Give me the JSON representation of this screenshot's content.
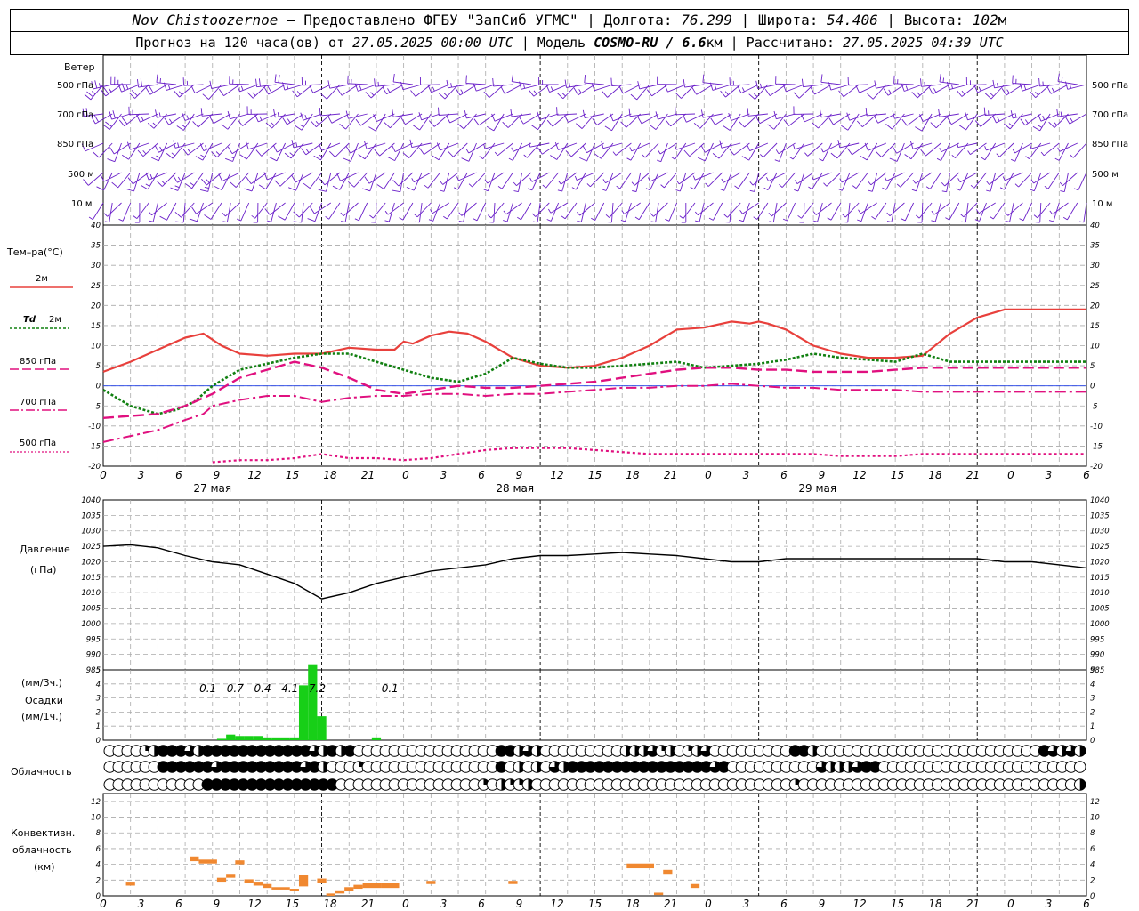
{
  "header": {
    "station": "Nov_Chistoozernoe",
    "provider": "– Предоставлено ФГБУ \"ЗапСиб УГМС\"",
    "lon_label": "Долгота:",
    "lon": "76.299",
    "lat_label": "Широта:",
    "lat": "54.406",
    "alt_label": "Высота:",
    "alt": "102",
    "alt_unit": "м",
    "forecast_prefix": "Прогноз на 120 часа(ов) от",
    "forecast_start": "27.05.2025 00:00 UTC",
    "model_label": "| Модель",
    "model": "COSMO-RU / 6.6",
    "model_unit": "км",
    "calc_label": "| Рассчитано:",
    "calc_time": "27.05.2025 04:39 UTC"
  },
  "labels": {
    "wind": "Ветер",
    "wind_levels": [
      "500 гПа",
      "700 гПа",
      "850 гПа",
      "500 м",
      "10  м"
    ],
    "temp_title": "Тем–ра(°С)",
    "t2m": "2м",
    "td_a": "Td",
    "td_b": "2м",
    "l850": "850 гПа",
    "l700": "700 гПа",
    "l500": "500 гПа",
    "pres_a": "Давление",
    "pres_b": "(гПа)",
    "prec_a": "(мм/3ч.)",
    "prec_b": "Осадки",
    "prec_c": "(мм/1ч.)",
    "cloud": "Облачность",
    "conv_a": "Конвективн.",
    "conv_b": "облачность",
    "conv_c": "(км)"
  },
  "colors": {
    "t2m": "#e8403c",
    "td": "#118011",
    "t850": "#e0107f",
    "t700": "#e0107f",
    "t500": "#e0107f",
    "wind": "#6a1fc9",
    "precip": "#17cf17",
    "conv": "#f08830",
    "zero_line": "#1f3fe8"
  },
  "chart_data": [
    {
      "type": "line",
      "x_hours_tick_labels": [
        "0",
        "3",
        "6",
        "9",
        "12",
        "15",
        "18",
        "21",
        "0",
        "3",
        "6",
        "9",
        "12",
        "15",
        "18",
        "21",
        "0",
        "3",
        "6",
        "9",
        "12",
        "15",
        "18",
        "21",
        "0",
        "3",
        "6"
      ],
      "day_labels": [
        "27 мая",
        "28 мая",
        "29 мая"
      ],
      "ylim": [
        -20,
        40
      ],
      "yticks": [
        -20,
        -15,
        -10,
        -5,
        0,
        5,
        10,
        15,
        20,
        25,
        30,
        35,
        40
      ],
      "series": [
        {
          "name": "2м",
          "key": "t2m",
          "x": [
            0,
            3,
            6,
            9,
            11,
            13,
            15,
            18,
            21,
            24,
            27,
            30,
            32,
            33,
            34,
            36,
            38,
            40,
            42,
            45,
            48,
            51,
            54,
            57,
            60,
            63,
            66,
            69,
            71,
            72,
            73,
            75,
            78,
            81,
            84,
            87,
            90,
            93,
            96,
            99,
            102,
            105,
            108
          ],
          "values": [
            3.5,
            6,
            9,
            12,
            13,
            10,
            8,
            7.5,
            8,
            8,
            9.5,
            9,
            9,
            11,
            10.5,
            12.5,
            13.5,
            13,
            11,
            7,
            5,
            4.5,
            5,
            7,
            10,
            14,
            14.5,
            16,
            15.5,
            16,
            15.5,
            14,
            10,
            8,
            7,
            7,
            7.5,
            13,
            17,
            19,
            19,
            19,
            19
          ]
        },
        {
          "name": "Td 2м",
          "key": "td",
          "x": [
            0,
            3,
            6,
            8,
            10,
            12,
            15,
            18,
            21,
            24,
            27,
            30,
            33,
            36,
            39,
            42,
            45,
            48,
            51,
            54,
            57,
            60,
            63,
            66,
            69,
            72,
            75,
            78,
            81,
            84,
            87,
            90,
            93,
            96,
            99,
            102,
            105,
            108
          ],
          "values": [
            -1,
            -5,
            -7,
            -6,
            -4,
            0,
            4,
            5.5,
            7,
            8,
            8,
            6,
            4,
            2,
            1,
            3,
            7,
            5.5,
            4.5,
            4.5,
            5,
            5.5,
            6,
            4.5,
            5,
            5.5,
            6.5,
            8,
            7,
            6.5,
            6,
            8,
            6,
            6,
            6,
            6,
            6,
            6
          ]
        },
        {
          "name": "850 гПа",
          "key": "t850",
          "x": [
            0,
            3,
            6,
            9,
            12,
            15,
            18,
            21,
            24,
            27,
            30,
            33,
            36,
            39,
            42,
            45,
            48,
            51,
            54,
            57,
            60,
            63,
            66,
            69,
            72,
            75,
            78,
            81,
            84,
            87,
            90,
            93,
            96,
            99,
            102,
            105,
            108
          ],
          "values": [
            -8,
            -7.5,
            -7,
            -5,
            -2,
            2,
            4,
            6,
            4.5,
            2,
            -1,
            -2,
            -1,
            0,
            -0.5,
            -0.5,
            0,
            0.5,
            1,
            2,
            3,
            4,
            4.5,
            4.5,
            4,
            4,
            3.5,
            3.5,
            3.5,
            4,
            4.5,
            4.5,
            4.5,
            4.5,
            4.5,
            4.5,
            4.5
          ]
        },
        {
          "name": "700 гПа",
          "key": "t700",
          "x": [
            0,
            3,
            6,
            9,
            11,
            12,
            15,
            18,
            21,
            24,
            27,
            30,
            33,
            36,
            39,
            42,
            45,
            48,
            51,
            54,
            57,
            60,
            63,
            66,
            69,
            72,
            75,
            78,
            81,
            84,
            87,
            90,
            93,
            96,
            99,
            102,
            105,
            108
          ],
          "values": [
            -14,
            -12.5,
            -11,
            -8.5,
            -7,
            -5,
            -3.5,
            -2.5,
            -2.5,
            -4,
            -3,
            -2.5,
            -2.5,
            -2,
            -2,
            -2.5,
            -2,
            -2,
            -1.5,
            -1,
            -0.5,
            -0.5,
            0,
            0,
            0.5,
            0,
            -0.5,
            -0.5,
            -1,
            -1,
            -1,
            -1.5,
            -1.5,
            -1.5,
            -1.5,
            -1.5,
            -1.5,
            -1.5
          ]
        },
        {
          "name": "500 гПа",
          "key": "t500",
          "x": [
            12,
            15,
            18,
            21,
            24,
            27,
            30,
            33,
            36,
            39,
            42,
            45,
            48,
            51,
            54,
            57,
            60,
            63,
            66,
            69,
            72,
            75,
            78,
            81,
            84,
            87,
            90,
            93,
            96,
            99,
            102,
            105,
            108
          ],
          "values": [
            -19,
            -18.5,
            -18.5,
            -18,
            -17,
            -18,
            -18,
            -18.5,
            -18,
            -17,
            -16,
            -15.5,
            -15.5,
            -15.5,
            -16,
            -16.5,
            -17,
            -17,
            -17,
            -17,
            -17,
            -17,
            -17,
            -17.5,
            -17.5,
            -17.5,
            -17,
            -17,
            -17,
            -17,
            -17,
            -17,
            -17
          ]
        }
      ]
    },
    {
      "type": "line",
      "ylabel": "Давление (гПа)",
      "ylim": [
        985,
        1040
      ],
      "yticks": [
        985,
        990,
        995,
        1000,
        1005,
        1010,
        1015,
        1020,
        1025,
        1030,
        1035,
        1040
      ],
      "series": [
        {
          "name": "Давление",
          "x": [
            0,
            3,
            6,
            9,
            12,
            15,
            18,
            21,
            24,
            27,
            30,
            33,
            36,
            39,
            42,
            45,
            48,
            51,
            54,
            57,
            60,
            63,
            66,
            69,
            72,
            75,
            78,
            81,
            84,
            87,
            90,
            93,
            96,
            99,
            102,
            105,
            108
          ],
          "values": [
            1025,
            1025.5,
            1024.5,
            1022,
            1020,
            1019,
            1016,
            1013,
            1008,
            1010,
            1013,
            1015,
            1017,
            1018,
            1019,
            1021,
            1022,
            1022,
            1022.5,
            1023,
            1022.5,
            1022,
            1021,
            1020,
            1020,
            1021,
            1021,
            1021,
            1021,
            1021,
            1021,
            1021,
            1021,
            1020,
            1020,
            1019,
            1018
          ]
        }
      ]
    },
    {
      "type": "bar",
      "ylabel": "Осадки (мм/1ч.)",
      "ylim": [
        0,
        5
      ],
      "yticks": [
        0,
        1,
        2,
        3,
        4,
        5
      ],
      "x": [
        13,
        14,
        15,
        16,
        17,
        18,
        19,
        20,
        21,
        22,
        23,
        24,
        30
      ],
      "values": [
        0.1,
        0.4,
        0.3,
        0.3,
        0.3,
        0.2,
        0.2,
        0.2,
        0.2,
        3.9,
        5.4,
        1.7,
        0.2
      ],
      "annotations_3h": [
        {
          "x": 11.5,
          "text": "0.1"
        },
        {
          "x": 14.5,
          "text": "0.7"
        },
        {
          "x": 17.5,
          "text": "0.4"
        },
        {
          "x": 20.5,
          "text": "4.1"
        },
        {
          "x": 23.5,
          "text": "7.2"
        },
        {
          "x": 31.5,
          "text": "0.1"
        }
      ]
    },
    {
      "type": "table",
      "name": "Облачность",
      "rows_octas": [
        [
          0,
          0,
          0,
          0,
          2,
          4,
          8,
          8,
          8,
          6,
          4,
          8,
          8,
          8,
          8,
          8,
          8,
          8,
          8,
          8,
          8,
          8,
          8,
          6,
          4,
          8,
          4,
          8,
          0,
          0,
          0,
          0,
          0,
          0,
          0,
          0,
          0,
          0,
          0,
          0,
          0,
          0,
          0,
          0,
          8,
          8,
          4,
          6,
          4,
          0,
          0,
          0,
          0,
          0,
          0,
          0,
          0,
          0,
          4,
          4,
          4,
          6,
          2,
          4,
          0,
          2,
          4,
          6,
          0,
          0,
          0,
          0,
          0,
          0,
          0,
          0,
          0,
          8,
          8,
          4,
          0,
          0,
          0,
          0,
          0,
          0,
          0,
          0,
          0,
          0,
          0,
          0,
          0,
          0,
          0,
          0,
          0,
          0,
          0,
          0,
          0,
          0,
          0,
          0,
          0,
          8,
          6,
          4,
          6,
          4
        ],
        [
          0,
          0,
          0,
          0,
          0,
          0,
          8,
          8,
          8,
          8,
          8,
          8,
          6,
          8,
          8,
          8,
          8,
          8,
          8,
          8,
          8,
          8,
          6,
          8,
          4,
          0,
          0,
          0,
          2,
          0,
          0,
          0,
          0,
          0,
          0,
          0,
          0,
          0,
          0,
          0,
          0,
          0,
          0,
          0,
          8,
          0,
          4,
          0,
          4,
          0,
          6,
          4,
          8,
          8,
          8,
          8,
          8,
          8,
          8,
          8,
          8,
          8,
          8,
          8,
          8,
          8,
          8,
          8,
          6,
          8,
          0,
          0,
          0,
          0,
          0,
          0,
          0,
          0,
          0,
          0,
          6,
          4,
          4,
          4,
          6,
          8,
          8,
          0,
          0,
          0,
          0,
          0,
          0,
          0,
          0,
          0,
          0,
          0,
          0,
          0,
          0,
          0,
          0,
          0,
          0,
          0,
          0,
          0,
          0,
          0
        ],
        [
          0,
          0,
          0,
          0,
          0,
          0,
          0,
          0,
          0,
          0,
          0,
          8,
          8,
          8,
          8,
          8,
          8,
          8,
          8,
          8,
          8,
          8,
          8,
          8,
          8,
          8,
          0,
          0,
          0,
          0,
          0,
          0,
          0,
          0,
          0,
          0,
          0,
          0,
          0,
          0,
          0,
          0,
          2,
          0,
          4,
          2,
          2,
          4,
          0,
          0,
          0,
          0,
          0,
          0,
          0,
          0,
          0,
          0,
          0,
          0,
          0,
          0,
          0,
          0,
          0,
          0,
          0,
          0,
          0,
          0,
          0,
          0,
          0,
          0,
          0,
          0,
          0,
          2,
          0,
          0,
          0,
          0,
          0,
          0,
          0,
          0,
          0,
          0,
          0,
          0,
          0,
          0,
          0,
          0,
          0,
          0,
          0,
          0,
          0,
          0,
          0,
          0,
          0,
          0,
          0,
          0,
          0,
          0,
          0,
          4
        ]
      ]
    },
    {
      "type": "bar",
      "ylabel": "Конвективн. облачность (км)",
      "ylim": [
        0,
        13
      ],
      "yticks": [
        0,
        2,
        4,
        6,
        8,
        10,
        12
      ],
      "segments": [
        {
          "x0": 2.5,
          "x1": 3.5,
          "bottom": 1.3,
          "top": 1.8
        },
        {
          "x0": 9.5,
          "x1": 10.5,
          "bottom": 4.4,
          "top": 5.0
        },
        {
          "x0": 10.5,
          "x1": 12.5,
          "bottom": 4.1,
          "top": 4.6
        },
        {
          "x0": 12.5,
          "x1": 13.5,
          "bottom": 1.8,
          "top": 2.3
        },
        {
          "x0": 13.5,
          "x1": 14.5,
          "bottom": 2.3,
          "top": 2.8
        },
        {
          "x0": 14.5,
          "x1": 15.5,
          "bottom": 4.0,
          "top": 4.5
        },
        {
          "x0": 15.5,
          "x1": 16.5,
          "bottom": 1.6,
          "top": 2.1
        },
        {
          "x0": 16.5,
          "x1": 17.5,
          "bottom": 1.3,
          "top": 1.8
        },
        {
          "x0": 17.5,
          "x1": 18.5,
          "bottom": 1.0,
          "top": 1.5
        },
        {
          "x0": 18.5,
          "x1": 20.5,
          "bottom": 0.8,
          "top": 1.1
        },
        {
          "x0": 20.5,
          "x1": 21.5,
          "bottom": 0.6,
          "top": 0.9
        },
        {
          "x0": 21.5,
          "x1": 22.5,
          "bottom": 1.2,
          "top": 2.6
        },
        {
          "x0": 23.5,
          "x1": 24.5,
          "bottom": 1.6,
          "top": 2.2
        },
        {
          "x0": 24.5,
          "x1": 25.5,
          "bottom": 0.0,
          "top": 0.3
        },
        {
          "x0": 25.5,
          "x1": 26.5,
          "bottom": 0.3,
          "top": 0.7
        },
        {
          "x0": 26.5,
          "x1": 27.5,
          "bottom": 0.6,
          "top": 1.1
        },
        {
          "x0": 27.5,
          "x1": 28.5,
          "bottom": 0.9,
          "top": 1.4
        },
        {
          "x0": 28.5,
          "x1": 30.5,
          "bottom": 1.0,
          "top": 1.6
        },
        {
          "x0": 30.5,
          "x1": 32.5,
          "bottom": 1.0,
          "top": 1.6
        },
        {
          "x0": 35.5,
          "x1": 36.5,
          "bottom": 1.5,
          "top": 1.9
        },
        {
          "x0": 44.5,
          "x1": 45.5,
          "bottom": 1.5,
          "top": 1.9
        },
        {
          "x0": 57.5,
          "x1": 60.5,
          "bottom": 3.5,
          "top": 4.1
        },
        {
          "x0": 60.5,
          "x1": 61.5,
          "bottom": 0.1,
          "top": 0.4
        },
        {
          "x0": 61.5,
          "x1": 62.5,
          "bottom": 2.8,
          "top": 3.3
        },
        {
          "x0": 64.5,
          "x1": 65.5,
          "bottom": 1.0,
          "top": 1.5
        }
      ]
    }
  ]
}
